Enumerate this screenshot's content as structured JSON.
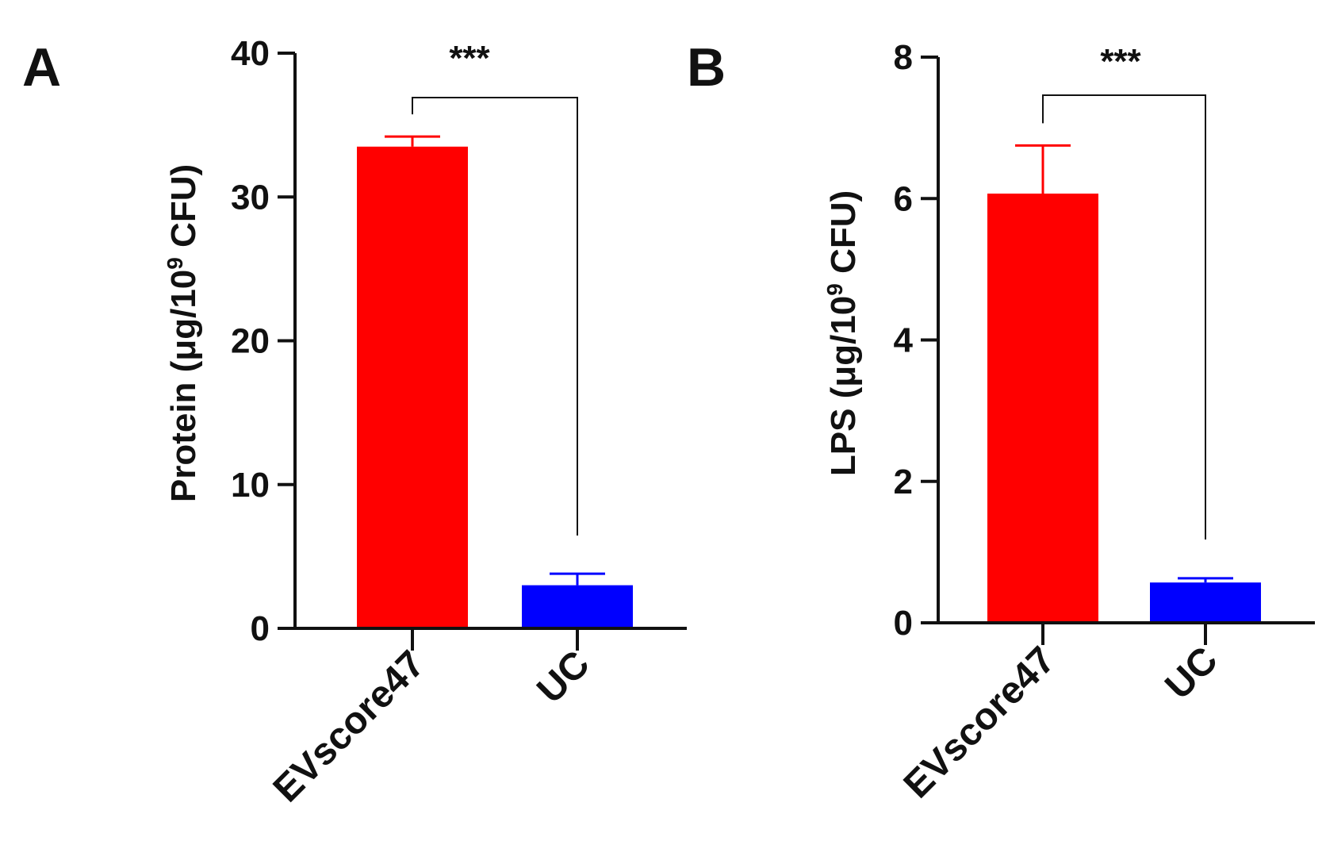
{
  "chart_data": [
    {
      "panel": "A",
      "type": "bar",
      "categories": [
        "EVscore47",
        "UC"
      ],
      "values": [
        33.5,
        3.0
      ],
      "errors": [
        0.7,
        0.8
      ],
      "colors": [
        "#ff0000",
        "#0000ff"
      ],
      "ylabel": {
        "pre": "Protein (μg/10",
        "sup": "9",
        "post": " CFU)"
      },
      "ylim": [
        0,
        40
      ],
      "yticks": [
        0,
        10,
        20,
        30,
        40
      ],
      "significance": {
        "label": "***",
        "from": 0,
        "to": 1
      }
    },
    {
      "panel": "B",
      "type": "bar",
      "categories": [
        "EVscore47",
        "UC"
      ],
      "values": [
        6.07,
        0.57
      ],
      "errors": [
        0.68,
        0.06
      ],
      "colors": [
        "#ff0000",
        "#0000ff"
      ],
      "ylabel": {
        "pre": "LPS (μg/10",
        "sup": "9",
        "post": " CFU)"
      },
      "ylim": [
        0,
        8
      ],
      "yticks": [
        0,
        2,
        4,
        6,
        8
      ],
      "significance": {
        "label": "***",
        "from": 0,
        "to": 1
      }
    }
  ]
}
